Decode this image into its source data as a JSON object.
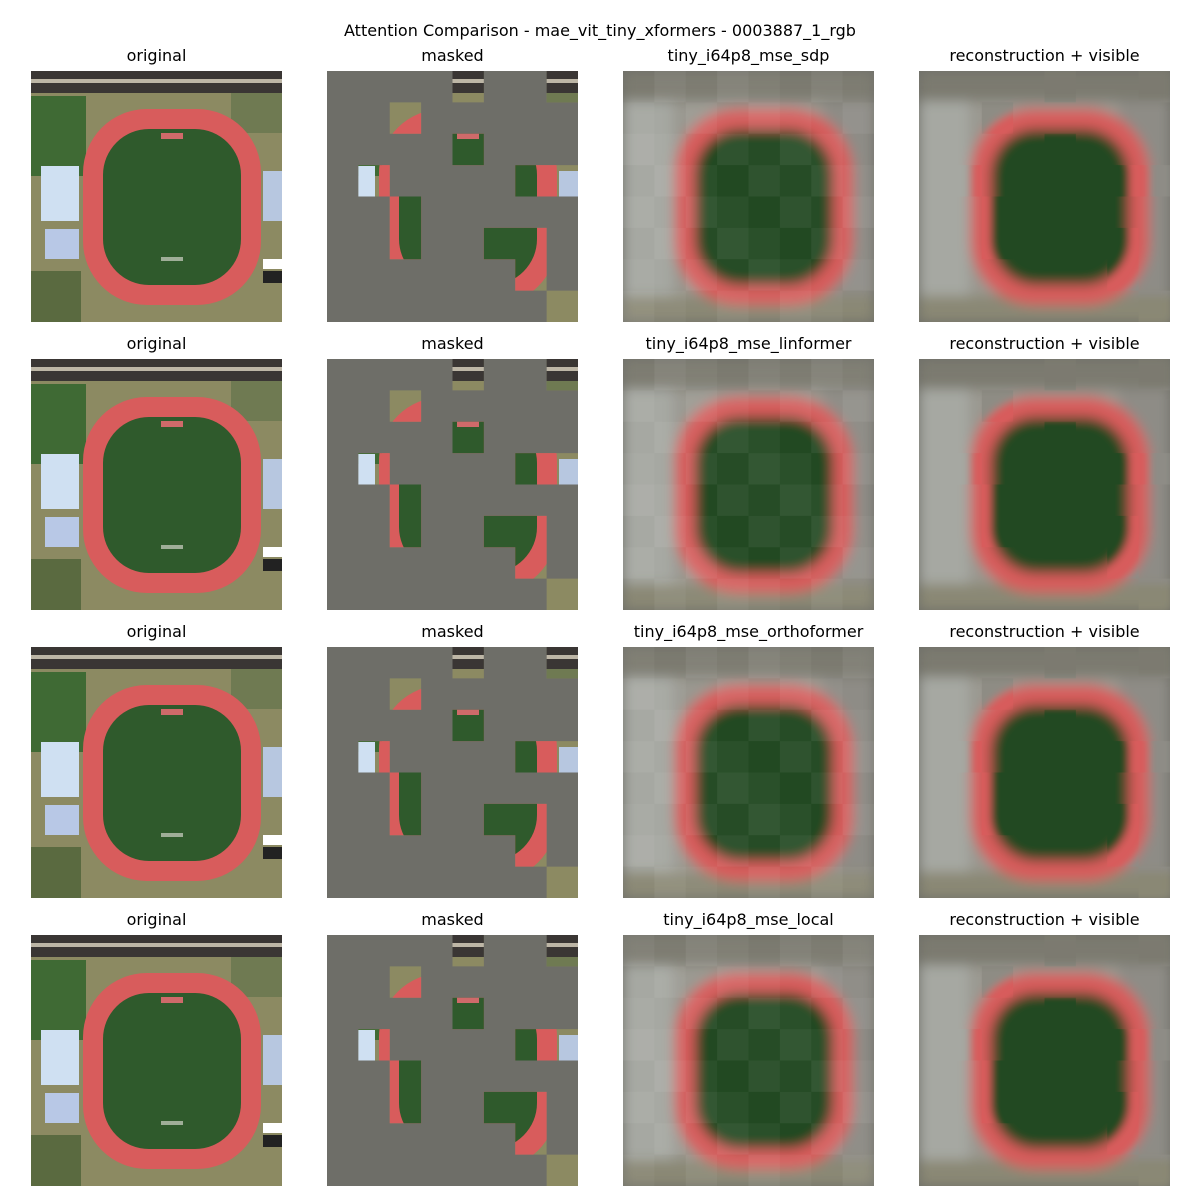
{
  "figure": {
    "title": "Attention Comparison - mae_vit_tiny_xformers - 0003887_1_rgb"
  },
  "rows": [
    {
      "original_title": "original",
      "masked_title": "masked",
      "model_title": "tiny_i64p8_mse_sdp",
      "combined_title": "reconstruction + visible"
    },
    {
      "original_title": "original",
      "masked_title": "masked",
      "model_title": "tiny_i64p8_mse_linformer",
      "combined_title": "reconstruction + visible"
    },
    {
      "original_title": "original",
      "masked_title": "masked",
      "model_title": "tiny_i64p8_mse_orthoformer",
      "combined_title": "reconstruction + visible"
    },
    {
      "original_title": "original",
      "masked_title": "masked",
      "model_title": "tiny_i64p8_mse_local",
      "combined_title": "reconstruction + visible"
    }
  ],
  "colors": {
    "mask_gray": "#6e6e68",
    "track_red": "#d85c5c",
    "field_green": "#2f5a2c",
    "dark_green": "#244a24",
    "tree_green": "#3f6a34",
    "road_dark": "#3a3634",
    "roof_light": "#cfe0f2",
    "recon_gray": "#9a9890"
  }
}
